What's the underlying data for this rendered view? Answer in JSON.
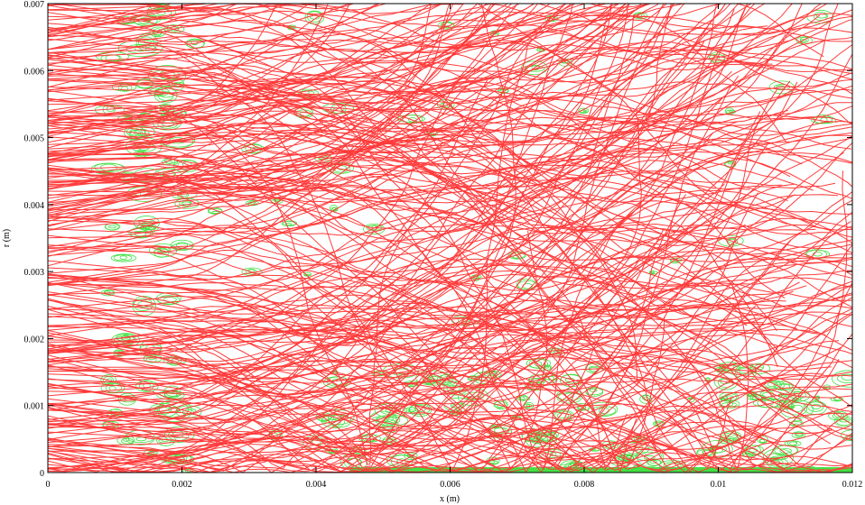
{
  "chart_data": {
    "type": "line",
    "title": "",
    "xlabel": "x (m)",
    "ylabel": "r (m)",
    "xlim": [
      0,
      0.012
    ],
    "ylim": [
      0,
      0.007
    ],
    "x_ticks": [
      {
        "value": 0,
        "label": "0"
      },
      {
        "value": 0.002,
        "label": "0.002"
      },
      {
        "value": 0.004,
        "label": "0.004"
      },
      {
        "value": 0.006,
        "label": "0.006"
      },
      {
        "value": 0.008,
        "label": "0.008"
      },
      {
        "value": 0.01,
        "label": "0.01"
      },
      {
        "value": 0.012,
        "label": "0.012"
      }
    ],
    "y_ticks": [
      {
        "value": 0,
        "label": "0"
      },
      {
        "value": 0.001,
        "label": "0.001"
      },
      {
        "value": 0.002,
        "label": "0.002"
      },
      {
        "value": 0.003,
        "label": "0.003"
      },
      {
        "value": 0.004,
        "label": "0.004"
      },
      {
        "value": 0.005,
        "label": "0.005"
      },
      {
        "value": 0.006,
        "label": "0.006"
      },
      {
        "value": 0.007,
        "label": "0.007"
      }
    ],
    "grid": false,
    "legend": "none",
    "series": [
      {
        "kind": "trajectories",
        "color": "#ff3b3b",
        "count_estimate": 300,
        "description_of_shape": "dense droplet trajectories entering at x=0 across full height, spreading and turning downstream"
      },
      {
        "kind": "contours",
        "color": "#44e044",
        "description_of_shape": "isocontour field, dense near x≈0.0015–0.002 and along r≈0 for x>0.006"
      }
    ]
  }
}
